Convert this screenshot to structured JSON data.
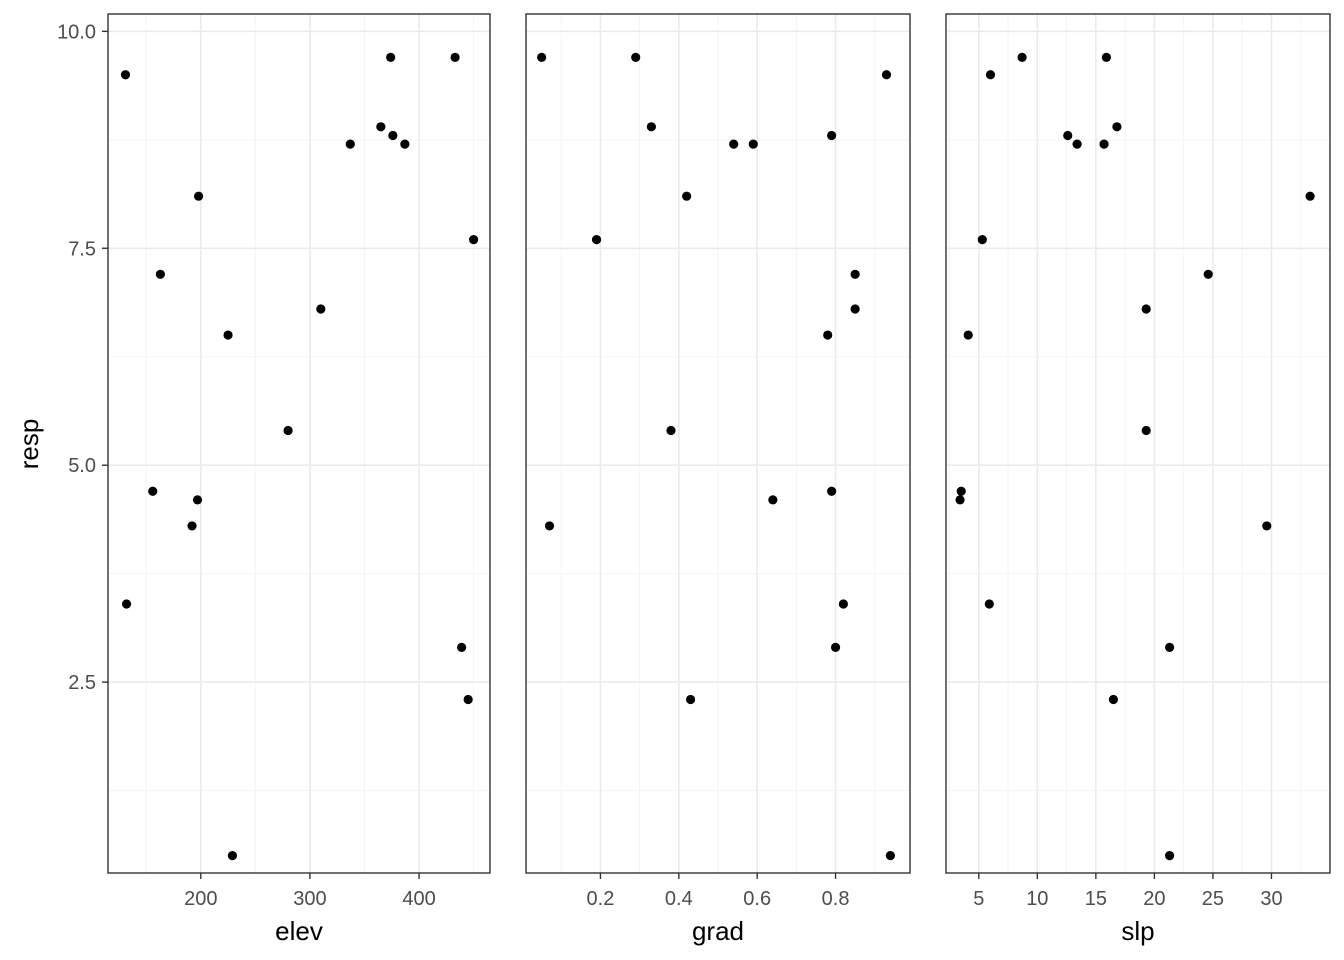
{
  "chart_data": {
    "type": "scatter",
    "layout": "faceted",
    "shared_y": true,
    "y": {
      "label": "resp",
      "ylim": [
        0.3,
        10.2
      ],
      "ticks": [
        2.5,
        5.0,
        7.5,
        10.0
      ],
      "tick_labels": [
        "2.5",
        "5.0",
        "7.5",
        "10.0"
      ]
    },
    "grid": true,
    "point_color": "#000000",
    "panels": [
      {
        "xlabel": "elev",
        "xlim": [
          115,
          465
        ],
        "xticks": [
          200,
          300,
          400
        ],
        "xtick_labels": [
          "200",
          "300",
          "400"
        ],
        "points": [
          {
            "x": 131,
            "y": 9.5
          },
          {
            "x": 374,
            "y": 9.7
          },
          {
            "x": 433,
            "y": 9.7
          },
          {
            "x": 365,
            "y": 8.9
          },
          {
            "x": 376,
            "y": 8.8
          },
          {
            "x": 337,
            "y": 8.7
          },
          {
            "x": 387,
            "y": 8.7
          },
          {
            "x": 198,
            "y": 8.1
          },
          {
            "x": 450,
            "y": 7.6
          },
          {
            "x": 163,
            "y": 7.2
          },
          {
            "x": 310,
            "y": 6.8
          },
          {
            "x": 225,
            "y": 6.5
          },
          {
            "x": 280,
            "y": 5.4
          },
          {
            "x": 156,
            "y": 4.7
          },
          {
            "x": 197,
            "y": 4.6
          },
          {
            "x": 192,
            "y": 4.3
          },
          {
            "x": 132,
            "y": 3.4
          },
          {
            "x": 439,
            "y": 2.9
          },
          {
            "x": 445,
            "y": 2.3
          },
          {
            "x": 229,
            "y": 0.5
          }
        ]
      },
      {
        "xlabel": "grad",
        "xlim": [
          0.01,
          0.99
        ],
        "xticks": [
          0.2,
          0.4,
          0.6,
          0.8
        ],
        "xtick_labels": [
          "0.2",
          "0.4",
          "0.6",
          "0.8"
        ],
        "points": [
          {
            "x": 0.05,
            "y": 9.7
          },
          {
            "x": 0.29,
            "y": 9.7
          },
          {
            "x": 0.93,
            "y": 9.5
          },
          {
            "x": 0.33,
            "y": 8.9
          },
          {
            "x": 0.79,
            "y": 8.8
          },
          {
            "x": 0.54,
            "y": 8.7
          },
          {
            "x": 0.59,
            "y": 8.7
          },
          {
            "x": 0.42,
            "y": 8.1
          },
          {
            "x": 0.19,
            "y": 7.6
          },
          {
            "x": 0.85,
            "y": 7.2
          },
          {
            "x": 0.85,
            "y": 6.8
          },
          {
            "x": 0.78,
            "y": 6.5
          },
          {
            "x": 0.38,
            "y": 5.4
          },
          {
            "x": 0.79,
            "y": 4.7
          },
          {
            "x": 0.64,
            "y": 4.6
          },
          {
            "x": 0.07,
            "y": 4.3
          },
          {
            "x": 0.82,
            "y": 3.4
          },
          {
            "x": 0.8,
            "y": 2.9
          },
          {
            "x": 0.43,
            "y": 2.3
          },
          {
            "x": 0.94,
            "y": 0.5
          }
        ]
      },
      {
        "xlabel": "slp",
        "xlim": [
          2.2,
          35.0
        ],
        "xticks": [
          5,
          10,
          15,
          20,
          25,
          30
        ],
        "xtick_labels": [
          "5",
          "10",
          "15",
          "20",
          "25",
          "30"
        ],
        "points": [
          {
            "x": 8.7,
            "y": 9.7
          },
          {
            "x": 15.9,
            "y": 9.7
          },
          {
            "x": 6.0,
            "y": 9.5
          },
          {
            "x": 16.8,
            "y": 8.9
          },
          {
            "x": 12.6,
            "y": 8.8
          },
          {
            "x": 13.4,
            "y": 8.7
          },
          {
            "x": 15.7,
            "y": 8.7
          },
          {
            "x": 33.3,
            "y": 8.1
          },
          {
            "x": 5.3,
            "y": 7.6
          },
          {
            "x": 24.6,
            "y": 7.2
          },
          {
            "x": 19.3,
            "y": 6.8
          },
          {
            "x": 4.1,
            "y": 6.5
          },
          {
            "x": 19.3,
            "y": 5.4
          },
          {
            "x": 3.5,
            "y": 4.7
          },
          {
            "x": 3.4,
            "y": 4.6
          },
          {
            "x": 29.6,
            "y": 4.3
          },
          {
            "x": 5.9,
            "y": 3.4
          },
          {
            "x": 21.3,
            "y": 2.9
          },
          {
            "x": 16.5,
            "y": 2.3
          },
          {
            "x": 21.3,
            "y": 0.5
          }
        ]
      }
    ]
  }
}
